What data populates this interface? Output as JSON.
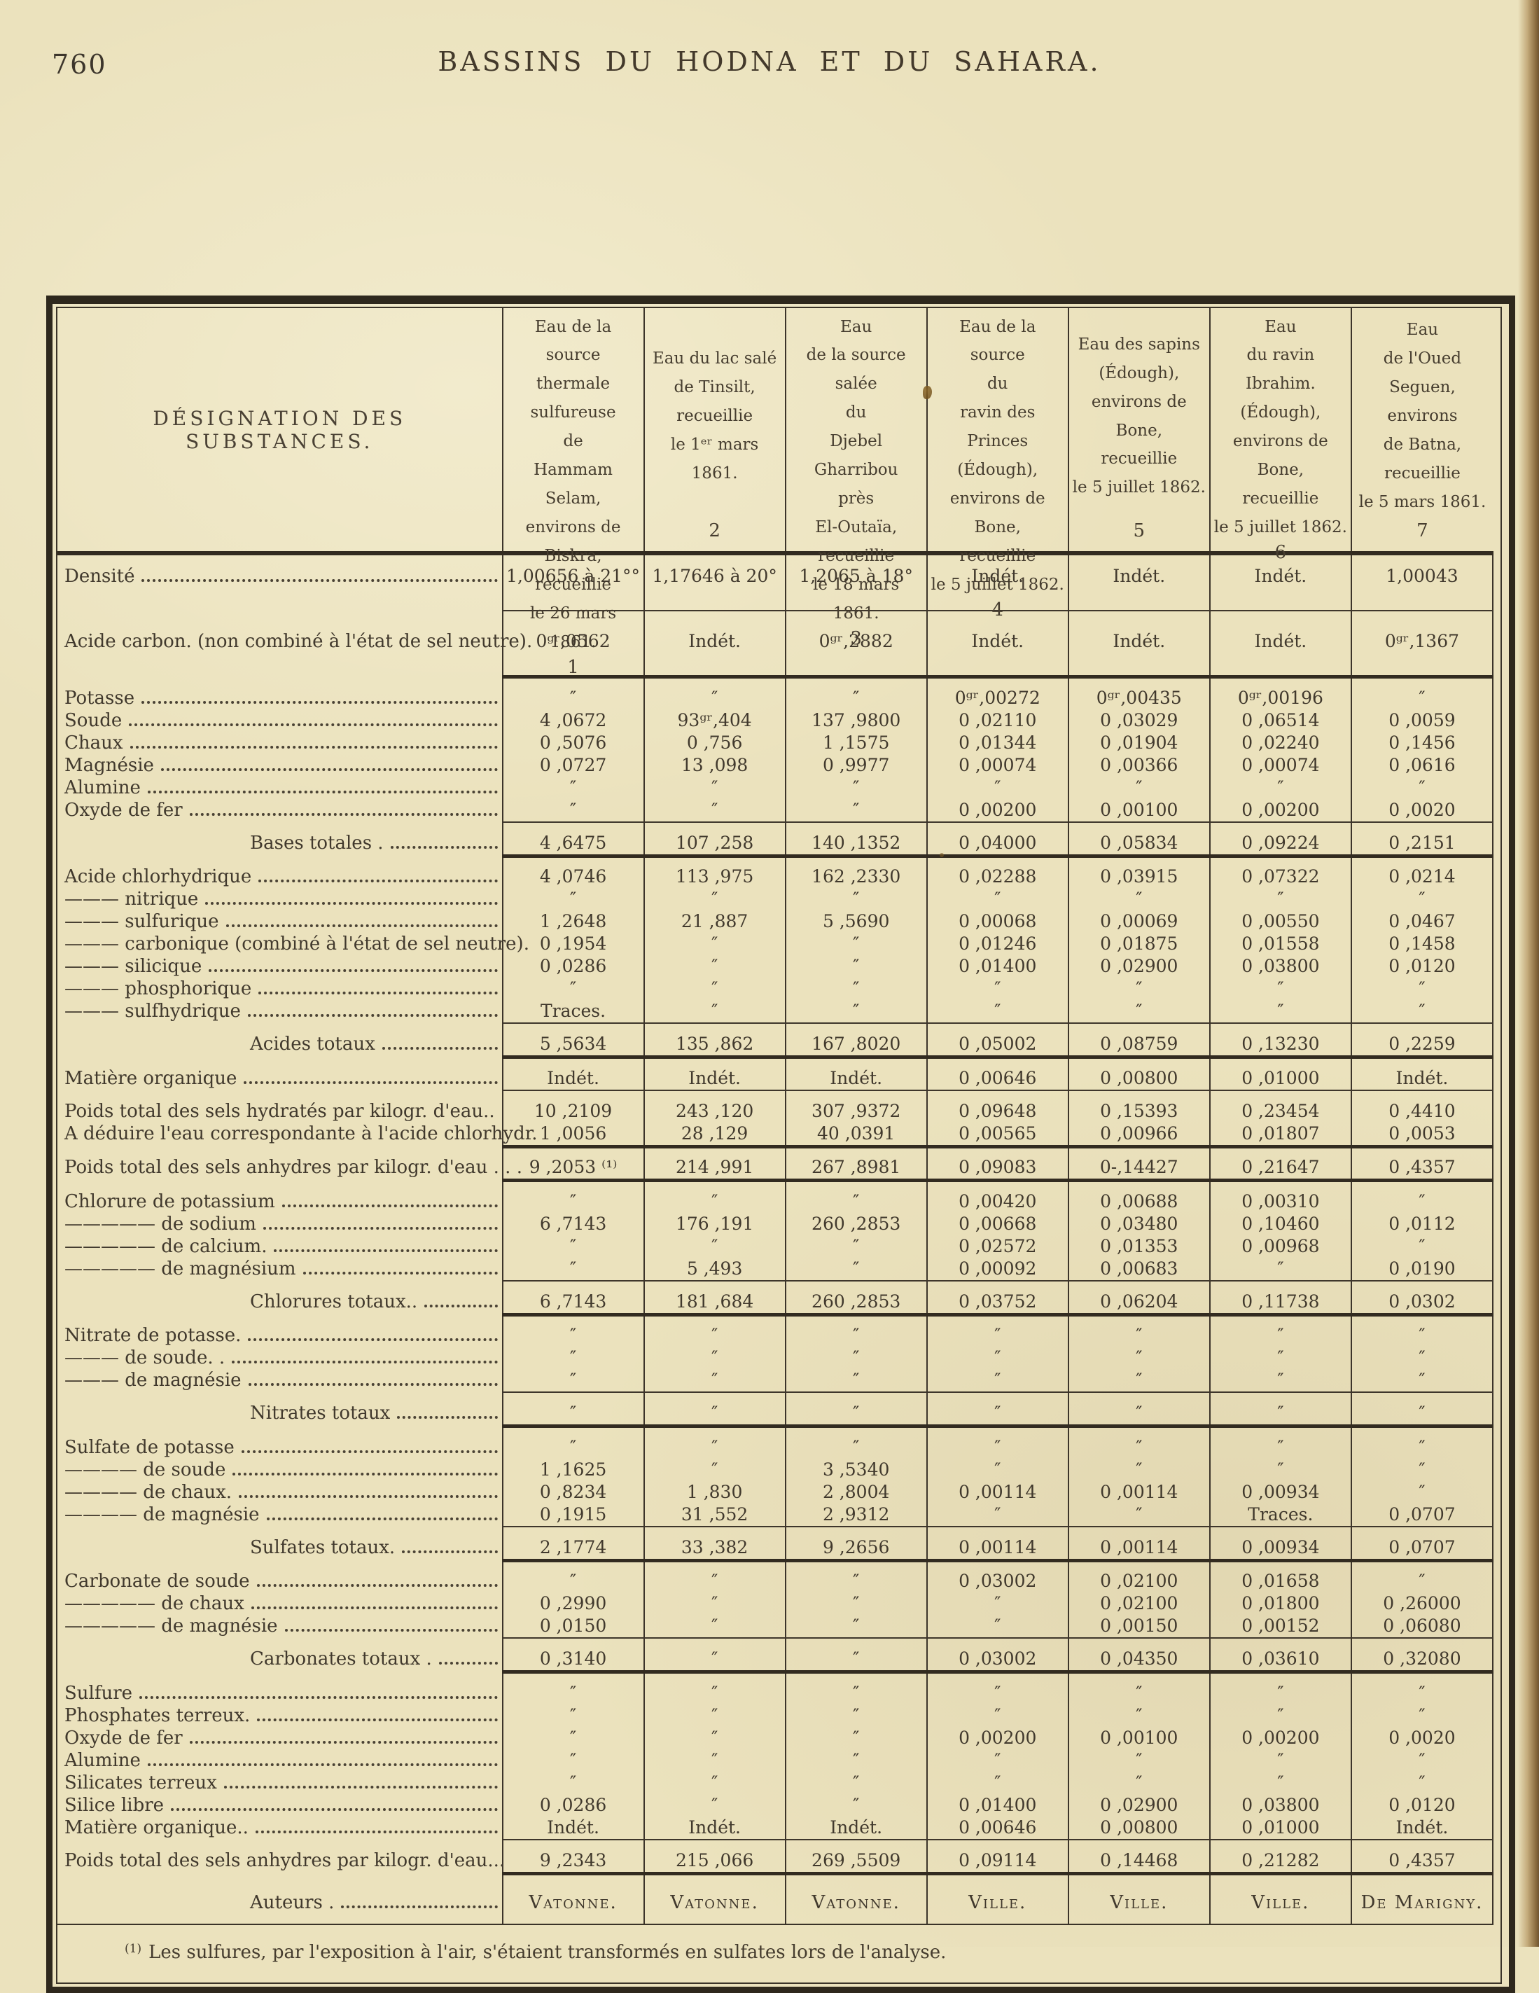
{
  "page": {
    "number": "760",
    "title": "BASSINS DU HODNA ET DU SAHARA."
  },
  "table": {
    "designation_header": "DÉSIGNATION DES SUBSTANCES.",
    "columns": [
      {
        "lines": [
          "Eau de la source",
          "thermale sulfureuse",
          "de",
          "Hammam Selam,",
          "environs de Biskra,",
          "recueillie",
          "le 26 mars 1861."
        ],
        "num": "1"
      },
      {
        "lines": [
          "Eau du lac salé",
          "de Tinsilt,",
          "recueillie",
          "le 1ᵉʳ mars 1861."
        ],
        "num": "2"
      },
      {
        "lines": [
          "Eau",
          "de la source salée",
          "du",
          "Djebel Gharribou",
          "près",
          "El-Outaïa,",
          "recueillie",
          "le 18 mars 1861."
        ],
        "num": "3"
      },
      {
        "lines": [
          "Eau de la source",
          "du",
          "ravin des Princes",
          "(Édough),",
          "environs de Bone,",
          "recueillie",
          "le 5 juillet 1862."
        ],
        "num": "4"
      },
      {
        "lines": [
          "Eau des sapins",
          "(Édough),",
          "environs de Bone,",
          "recueillie",
          "le 5 juillet 1862."
        ],
        "num": "5"
      },
      {
        "lines": [
          "Eau",
          "du ravin Ibrahim.",
          "(Édough),",
          "environs de Bone,",
          "recueillie",
          "le 5 juillet 1862."
        ],
        "num": "6"
      },
      {
        "lines": [
          "Eau",
          "de l'Oued Seguen,",
          "environs",
          "de Batna,",
          "recueillie",
          "le 5 mars 1861."
        ],
        "num": "7"
      }
    ],
    "rows": [
      {
        "label": "Densité",
        "dots": true,
        "cls": "tall",
        "values": [
          "1,00656 à 21°°",
          "1,17646 à 20°",
          "1,2065 à 18°",
          "Indét.",
          "Indét.",
          "Indét.",
          "1,00043"
        ]
      },
      {
        "rule": "thin"
      },
      {
        "label": "Acide carbon. (non combiné à l'état de sel neutre).",
        "dots": false,
        "cls": "tall",
        "values": [
          "0ᵍʳ,0562",
          "Indét.",
          "0ᵍʳ,2882",
          "Indét.",
          "Indét.",
          "Indét.",
          "0ᵍʳ,1367"
        ]
      },
      {
        "rule": "heavy"
      },
      {
        "label": "Potasse",
        "dots": true,
        "values": [
          "″",
          "″",
          "″",
          "0ᵍʳ,00272",
          "0ᵍʳ,00435",
          "0ᵍʳ,00196",
          "″"
        ]
      },
      {
        "label": "Soude",
        "dots": true,
        "values": [
          "4 ,0672",
          "93ᵍʳ,404",
          "137 ,9800",
          "0 ,02110",
          "0 ,03029",
          "0 ,06514",
          "0 ,0059"
        ]
      },
      {
        "label": "Chaux",
        "dots": true,
        "values": [
          "0 ,5076",
          "0 ,756",
          "1 ,1575",
          "0 ,01344",
          "0 ,01904",
          "0 ,02240",
          "0 ,1456"
        ]
      },
      {
        "label": "Magnésie",
        "dots": true,
        "values": [
          "0 ,0727",
          "13 ,098",
          "0 ,9977",
          "0 ,00074",
          "0 ,00366",
          "0 ,00074",
          "0 ,0616"
        ]
      },
      {
        "label": "Alumine",
        "dots": true,
        "values": [
          "″",
          "″",
          "″",
          "″",
          "″",
          "″",
          "″"
        ]
      },
      {
        "label": "Oxyde de fer",
        "dots": true,
        "values": [
          "″",
          "″",
          "″",
          "0 ,00200",
          "0 ,00100",
          "0 ,00200",
          "0 ,0020"
        ]
      },
      {
        "rule": "thin"
      },
      {
        "label": "Bases totales .",
        "dots": true,
        "indent": true,
        "values": [
          "4 ,6475",
          "107 ,258",
          "140 ,1352",
          "0 ,04000",
          "0 ,05834",
          "0 ,09224",
          "0 ,2151"
        ]
      },
      {
        "rule": "heavy"
      },
      {
        "label": "Acide chlorhydrique",
        "dots": true,
        "values": [
          "4 ,0746",
          "113 ,975",
          "162 ,2330",
          "0 ,02288",
          "0 ,03915",
          "0 ,07322",
          "0 ,0214"
        ]
      },
      {
        "label": "——— nitrique",
        "dots": true,
        "values": [
          "″",
          "″",
          "″",
          "″",
          "″",
          "″",
          "″"
        ]
      },
      {
        "label": "——— sulfurique",
        "dots": true,
        "values": [
          "1 ,2648",
          "21 ,887",
          "5 ,5690",
          "0 ,00068",
          "0 ,00069",
          "0 ,00550",
          "0 ,0467"
        ]
      },
      {
        "label": "——— carbonique (combiné à l'état de sel neutre).",
        "dots": false,
        "values": [
          "0 ,1954",
          "″",
          "″",
          "0 ,01246",
          "0 ,01875",
          "0 ,01558",
          "0 ,1458"
        ]
      },
      {
        "label": "——— silicique",
        "dots": true,
        "values": [
          "0 ,0286",
          "″",
          "″",
          "0 ,01400",
          "0 ,02900",
          "0 ,03800",
          "0 ,0120"
        ]
      },
      {
        "label": "——— phosphorique",
        "dots": true,
        "values": [
          "″",
          "″",
          "″",
          "″",
          "″",
          "″",
          "″"
        ]
      },
      {
        "label": "——— sulfhydrique",
        "dots": true,
        "values": [
          "Traces.",
          "″",
          "″",
          "″",
          "″",
          "″",
          "″"
        ]
      },
      {
        "rule": "thin"
      },
      {
        "label": "Acides totaux",
        "dots": true,
        "indent": true,
        "values": [
          "5 ,5634",
          "135 ,862",
          "167 ,8020",
          "0 ,05002",
          "0 ,08759",
          "0 ,13230",
          "0 ,2259"
        ]
      },
      {
        "rule": "heavy"
      },
      {
        "label": "Matière organique",
        "dots": true,
        "values": [
          "Indét.",
          "Indét.",
          "Indét.",
          "0 ,00646",
          "0 ,00800",
          "0 ,01000",
          "Indét."
        ]
      },
      {
        "rule": "thin"
      },
      {
        "label": "Poids total des sels hydratés par kilogr. d'eau..",
        "dots": false,
        "values": [
          "10 ,2109",
          "243 ,120",
          "307 ,9372",
          "0 ,09648",
          "0 ,15393",
          "0 ,23454",
          "0 ,4410"
        ]
      },
      {
        "label": "A déduire l'eau correspondante à l'acide chlorhydr.",
        "dots": false,
        "values": [
          "1 ,0056",
          "28 ,129",
          "40 ,0391",
          "0 ,00565",
          "0 ,00966",
          "0 ,01807",
          "0 ,0053"
        ]
      },
      {
        "rule": "heavy"
      },
      {
        "label": "Poids total des sels anhydres par kilogr. d'eau . . .",
        "dots": false,
        "values": [
          "9 ,2053 ⁽¹⁾",
          "214 ,991",
          "267 ,8981",
          "0 ,09083",
          "0-,14427",
          "0 ,21647",
          "0 ,4357"
        ]
      },
      {
        "rule": "heavy"
      },
      {
        "label": "Chlorure de potassium",
        "dots": true,
        "values": [
          "″",
          "″",
          "″",
          "0 ,00420",
          "0 ,00688",
          "0 ,00310",
          "″"
        ]
      },
      {
        "label": "————— de sodium",
        "dots": true,
        "values": [
          "6 ,7143",
          "176 ,191",
          "260 ,2853",
          "0 ,00668",
          "0 ,03480",
          "0 ,10460",
          "0 ,0112"
        ]
      },
      {
        "label": "————— de calcium.",
        "dots": true,
        "values": [
          "″",
          "″",
          "″",
          "0 ,02572",
          "0 ,01353",
          "0 ,00968",
          "″"
        ]
      },
      {
        "label": "————— de magnésium",
        "dots": true,
        "values": [
          "″",
          "5 ,493",
          "″",
          "0 ,00092",
          "0 ,00683",
          "″",
          "0 ,0190"
        ]
      },
      {
        "rule": "thin"
      },
      {
        "label": "Chlorures totaux..",
        "dots": true,
        "indent": true,
        "values": [
          "6 ,7143",
          "181 ,684",
          "260 ,2853",
          "0 ,03752",
          "0 ,06204",
          "0 ,11738",
          "0 ,0302"
        ]
      },
      {
        "rule": "heavy"
      },
      {
        "label": "Nitrate de potasse.",
        "dots": true,
        "values": [
          "″",
          "″",
          "″",
          "″",
          "″",
          "″",
          "″"
        ]
      },
      {
        "label": "——— de soude. .",
        "dots": true,
        "values": [
          "″",
          "″",
          "″",
          "″",
          "″",
          "″",
          "″"
        ]
      },
      {
        "label": "——— de magnésie",
        "dots": true,
        "values": [
          "″",
          "″",
          "″",
          "″",
          "″",
          "″",
          "″"
        ]
      },
      {
        "rule": "thin"
      },
      {
        "label": "Nitrates totaux",
        "dots": true,
        "indent": true,
        "values": [
          "″",
          "″",
          "″",
          "″",
          "″",
          "″",
          "″"
        ]
      },
      {
        "rule": "heavy"
      },
      {
        "label": "Sulfate de potasse",
        "dots": true,
        "values": [
          "″",
          "″",
          "″",
          "″",
          "″",
          "″",
          "″"
        ]
      },
      {
        "label": "———— de soude",
        "dots": true,
        "values": [
          "1 ,1625",
          "″",
          "3 ,5340",
          "″",
          "″",
          "″",
          "″"
        ]
      },
      {
        "label": "———— de chaux.",
        "dots": true,
        "values": [
          "0 ,8234",
          "1 ,830",
          "2 ,8004",
          "0 ,00114",
          "0 ,00114",
          "0 ,00934",
          "″"
        ]
      },
      {
        "label": "———— de magnésie",
        "dots": true,
        "values": [
          "0 ,1915",
          "31 ,552",
          "2 ,9312",
          "″",
          "″",
          "Traces.",
          "0 ,0707"
        ]
      },
      {
        "rule": "thin"
      },
      {
        "label": "Sulfates totaux.",
        "dots": true,
        "indent": true,
        "values": [
          "2 ,1774",
          "33 ,382",
          "9 ,2656",
          "0 ,00114",
          "0 ,00114",
          "0 ,00934",
          "0 ,0707"
        ]
      },
      {
        "rule": "heavy"
      },
      {
        "label": "Carbonate de soude",
        "dots": true,
        "values": [
          "″",
          "″",
          "″",
          "0 ,03002",
          "0 ,02100",
          "0 ,01658",
          "″"
        ]
      },
      {
        "label": "————— de chaux",
        "dots": true,
        "values": [
          "0 ,2990",
          "″",
          "″",
          "″",
          "0 ,02100",
          "0 ,01800",
          "0 ,26000"
        ]
      },
      {
        "label": "————— de magnésie",
        "dots": true,
        "values": [
          "0 ,0150",
          "″",
          "″",
          "″",
          "0 ,00150",
          "0 ,00152",
          "0 ,06080"
        ]
      },
      {
        "rule": "thin"
      },
      {
        "label": "Carbonates totaux .",
        "dots": true,
        "indent": true,
        "values": [
          "0 ,3140",
          "″",
          "″",
          "0 ,03002",
          "0 ,04350",
          "0 ,03610",
          "0 ,32080"
        ]
      },
      {
        "rule": "heavy"
      },
      {
        "label": "Sulfure",
        "dots": true,
        "values": [
          "″",
          "″",
          "″",
          "″",
          "″",
          "″",
          "″"
        ]
      },
      {
        "label": "Phosphates terreux.",
        "dots": true,
        "values": [
          "″",
          "″",
          "″",
          "″",
          "″",
          "″",
          "″"
        ]
      },
      {
        "label": "Oxyde de fer ",
        "dots": true,
        "values": [
          "″",
          "″",
          "″",
          "0 ,00200",
          "0 ,00100",
          "0 ,00200",
          "0 ,0020"
        ]
      },
      {
        "label": "Alumine",
        "dots": true,
        "values": [
          "″",
          "″",
          "″",
          "″",
          "″",
          "″",
          "″"
        ]
      },
      {
        "label": "Silicates terreux ",
        "dots": true,
        "values": [
          "″",
          "″",
          "″",
          "″",
          "″",
          "″",
          "″"
        ]
      },
      {
        "label": "Silice libre",
        "dots": true,
        "values": [
          "0 ,0286",
          "″",
          "″",
          "0 ,01400",
          "0 ,02900",
          "0 ,03800",
          "0 ,0120"
        ]
      },
      {
        "label": "Matière organique..",
        "dots": true,
        "values": [
          "Indét.",
          "Indét.",
          "Indét.",
          "0 ,00646",
          "0 ,00800",
          "0 ,01000",
          "Indét."
        ]
      },
      {
        "rule": "thin"
      },
      {
        "label": "Poids total des sels anhydres par kilogr. d'eau...",
        "dots": false,
        "values": [
          "9 ,2343",
          "215 ,066",
          "269 ,5509",
          "0 ,09114",
          "0 ,14468",
          "0 ,21282",
          "0 ,4357"
        ]
      },
      {
        "rule": "heavy"
      },
      {
        "label": "Auteurs .",
        "dots": true,
        "indent": true,
        "cls": "auteurs",
        "values": [
          "Vatonne.",
          "Vatonne.",
          "Vatonne.",
          "Ville.",
          "Ville.",
          "Ville.",
          "De Marigny."
        ]
      }
    ],
    "footnote": {
      "marker": "(1)",
      "text": "Les sulfures, par l'exposition à l'air, s'étaient transformés en sulfates lors de l'analyse."
    }
  }
}
